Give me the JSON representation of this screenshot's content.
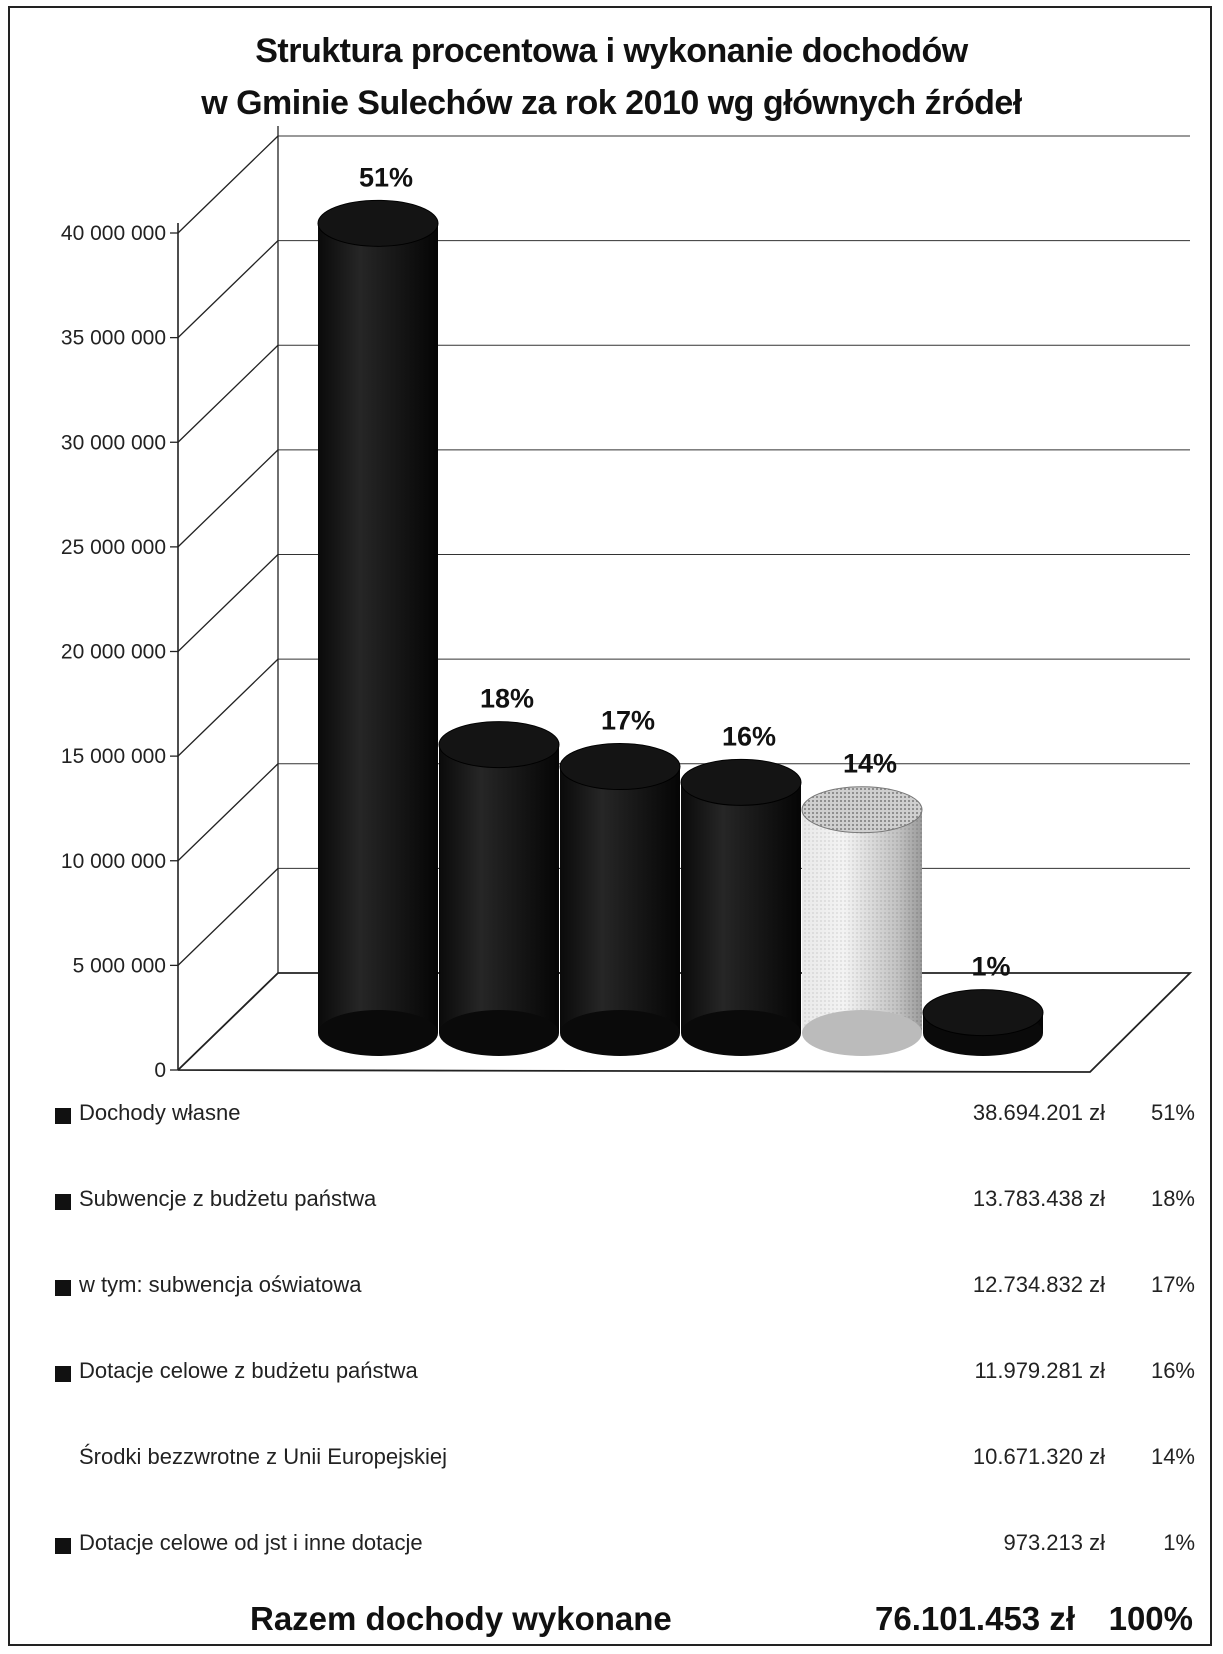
{
  "chart_data": {
    "type": "bar",
    "title_line1": "Struktura procentowa i wykonanie dochodów",
    "title_line2": "w Gminie Sulechów za rok 2010 wg głównych źródeł",
    "categories": [
      "Dochody własne",
      "Subwencje z budżetu państwa",
      "w tym: subwencja oświatowa",
      "Dotacje celowe z budżetu państwa",
      "Środki bezzwrotne z Unii Europejskiej",
      "Dotacje celowe od jst i inne dotacje"
    ],
    "values": [
      38694201,
      13783438,
      12734832,
      11979281,
      10671320,
      973213
    ],
    "amount_labels": [
      "38.694.201 zł",
      "13.783.438 zł",
      "12.734.832 zł",
      "11.979.281 zł",
      "10.671.320 zł",
      "973.213 zł"
    ],
    "data_labels": [
      "51%",
      "18%",
      "17%",
      "16%",
      "14%",
      "1%"
    ],
    "ylim": [
      0,
      40000000
    ],
    "yticks": [
      0,
      5000000,
      10000000,
      15000000,
      20000000,
      25000000,
      30000000,
      35000000,
      40000000
    ],
    "ytick_labels": [
      "0",
      "5 000 000",
      "10 000 000",
      "15 000 000",
      "20 000 000",
      "25 000 000",
      "30 000 000",
      "35 000 000",
      "40 000 000"
    ],
    "grid": true,
    "legend_position": "bottom",
    "colors": [
      "#111111",
      "#111111",
      "#111111",
      "#111111",
      "#d8d8d8",
      "#111111"
    ],
    "legend_markers": [
      true,
      true,
      true,
      true,
      false,
      true
    ],
    "total": {
      "label": "Razem dochody wykonane",
      "amount": "76.101.453 zł",
      "percent": "100%"
    }
  }
}
